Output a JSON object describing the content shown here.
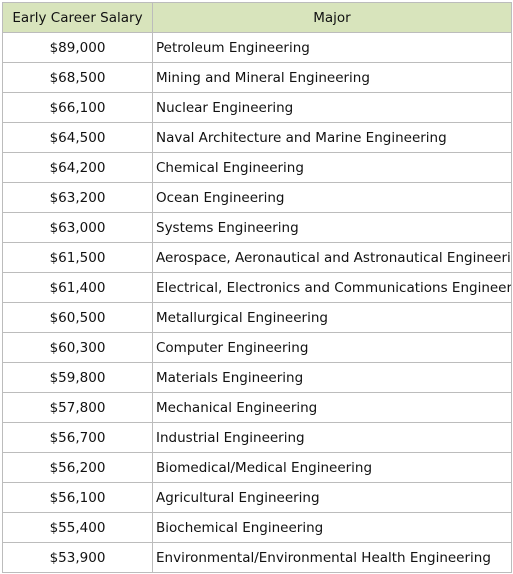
{
  "header": {
    "salary_label": "Early Career Salary",
    "major_label": "Major",
    "background_color": "#d8e4bc"
  },
  "rows": [
    {
      "salary": "$89,000",
      "major": "Petroleum Engineering"
    },
    {
      "salary": "$68,500",
      "major": "Mining and Mineral Engineering"
    },
    {
      "salary": "$66,100",
      "major": "Nuclear Engineering"
    },
    {
      "salary": "$64,500",
      "major": "Naval Architecture and Marine Engineering"
    },
    {
      "salary": "$64,200",
      "major": "Chemical Engineering"
    },
    {
      "salary": "$63,200",
      "major": "Ocean Engineering"
    },
    {
      "salary": "$63,000",
      "major": "Systems Engineering"
    },
    {
      "salary": "$61,500",
      "major": "Aerospace, Aeronautical and Astronautical Engineering"
    },
    {
      "salary": "$61,400",
      "major": "Electrical, Electronics and Communications Engineering"
    },
    {
      "salary": "$60,500",
      "major": "Metallurgical Engineering"
    },
    {
      "salary": "$60,300",
      "major": "Computer Engineering"
    },
    {
      "salary": "$59,800",
      "major": "Materials Engineering"
    },
    {
      "salary": "$57,800",
      "major": "Mechanical Engineering"
    },
    {
      "salary": "$56,700",
      "major": "Industrial Engineering"
    },
    {
      "salary": "$56,200",
      "major": "Biomedical/Medical Engineering"
    },
    {
      "salary": "$56,100",
      "major": "Agricultural Engineering"
    },
    {
      "salary": "$55,400",
      "major": "Biochemical Engineering"
    },
    {
      "salary": "$53,900",
      "major": "Environmental/Environmental Health Engineering"
    }
  ]
}
